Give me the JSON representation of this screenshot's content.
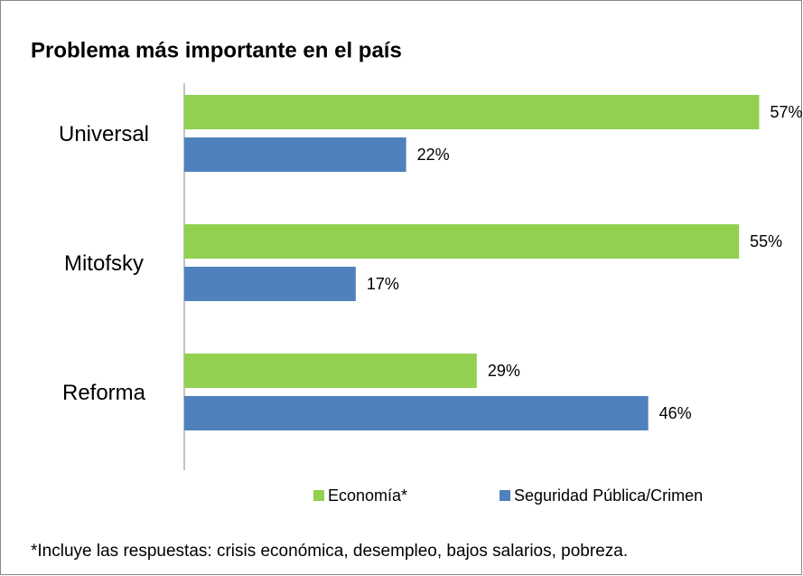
{
  "chart_data": {
    "type": "bar",
    "orientation": "horizontal",
    "title": "Problema más importante en el país",
    "categories": [
      "Universal",
      "Mitofsky",
      "Reforma"
    ],
    "series": [
      {
        "name": "Economía*",
        "color": "#92d050",
        "values": [
          57,
          55,
          29
        ],
        "value_labels": [
          "57%",
          "55%",
          "29%"
        ]
      },
      {
        "name": "Seguridad Pública/Crimen",
        "color": "#4f81bd",
        "values": [
          22,
          17,
          46
        ],
        "value_labels": [
          "22%",
          "17%",
          "46%"
        ]
      }
    ],
    "xlim": [
      0,
      60
    ],
    "legend": "bottom",
    "footnote": "*Incluye las respuestas: crisis económica, desempleo, bajos salarios, pobreza."
  }
}
